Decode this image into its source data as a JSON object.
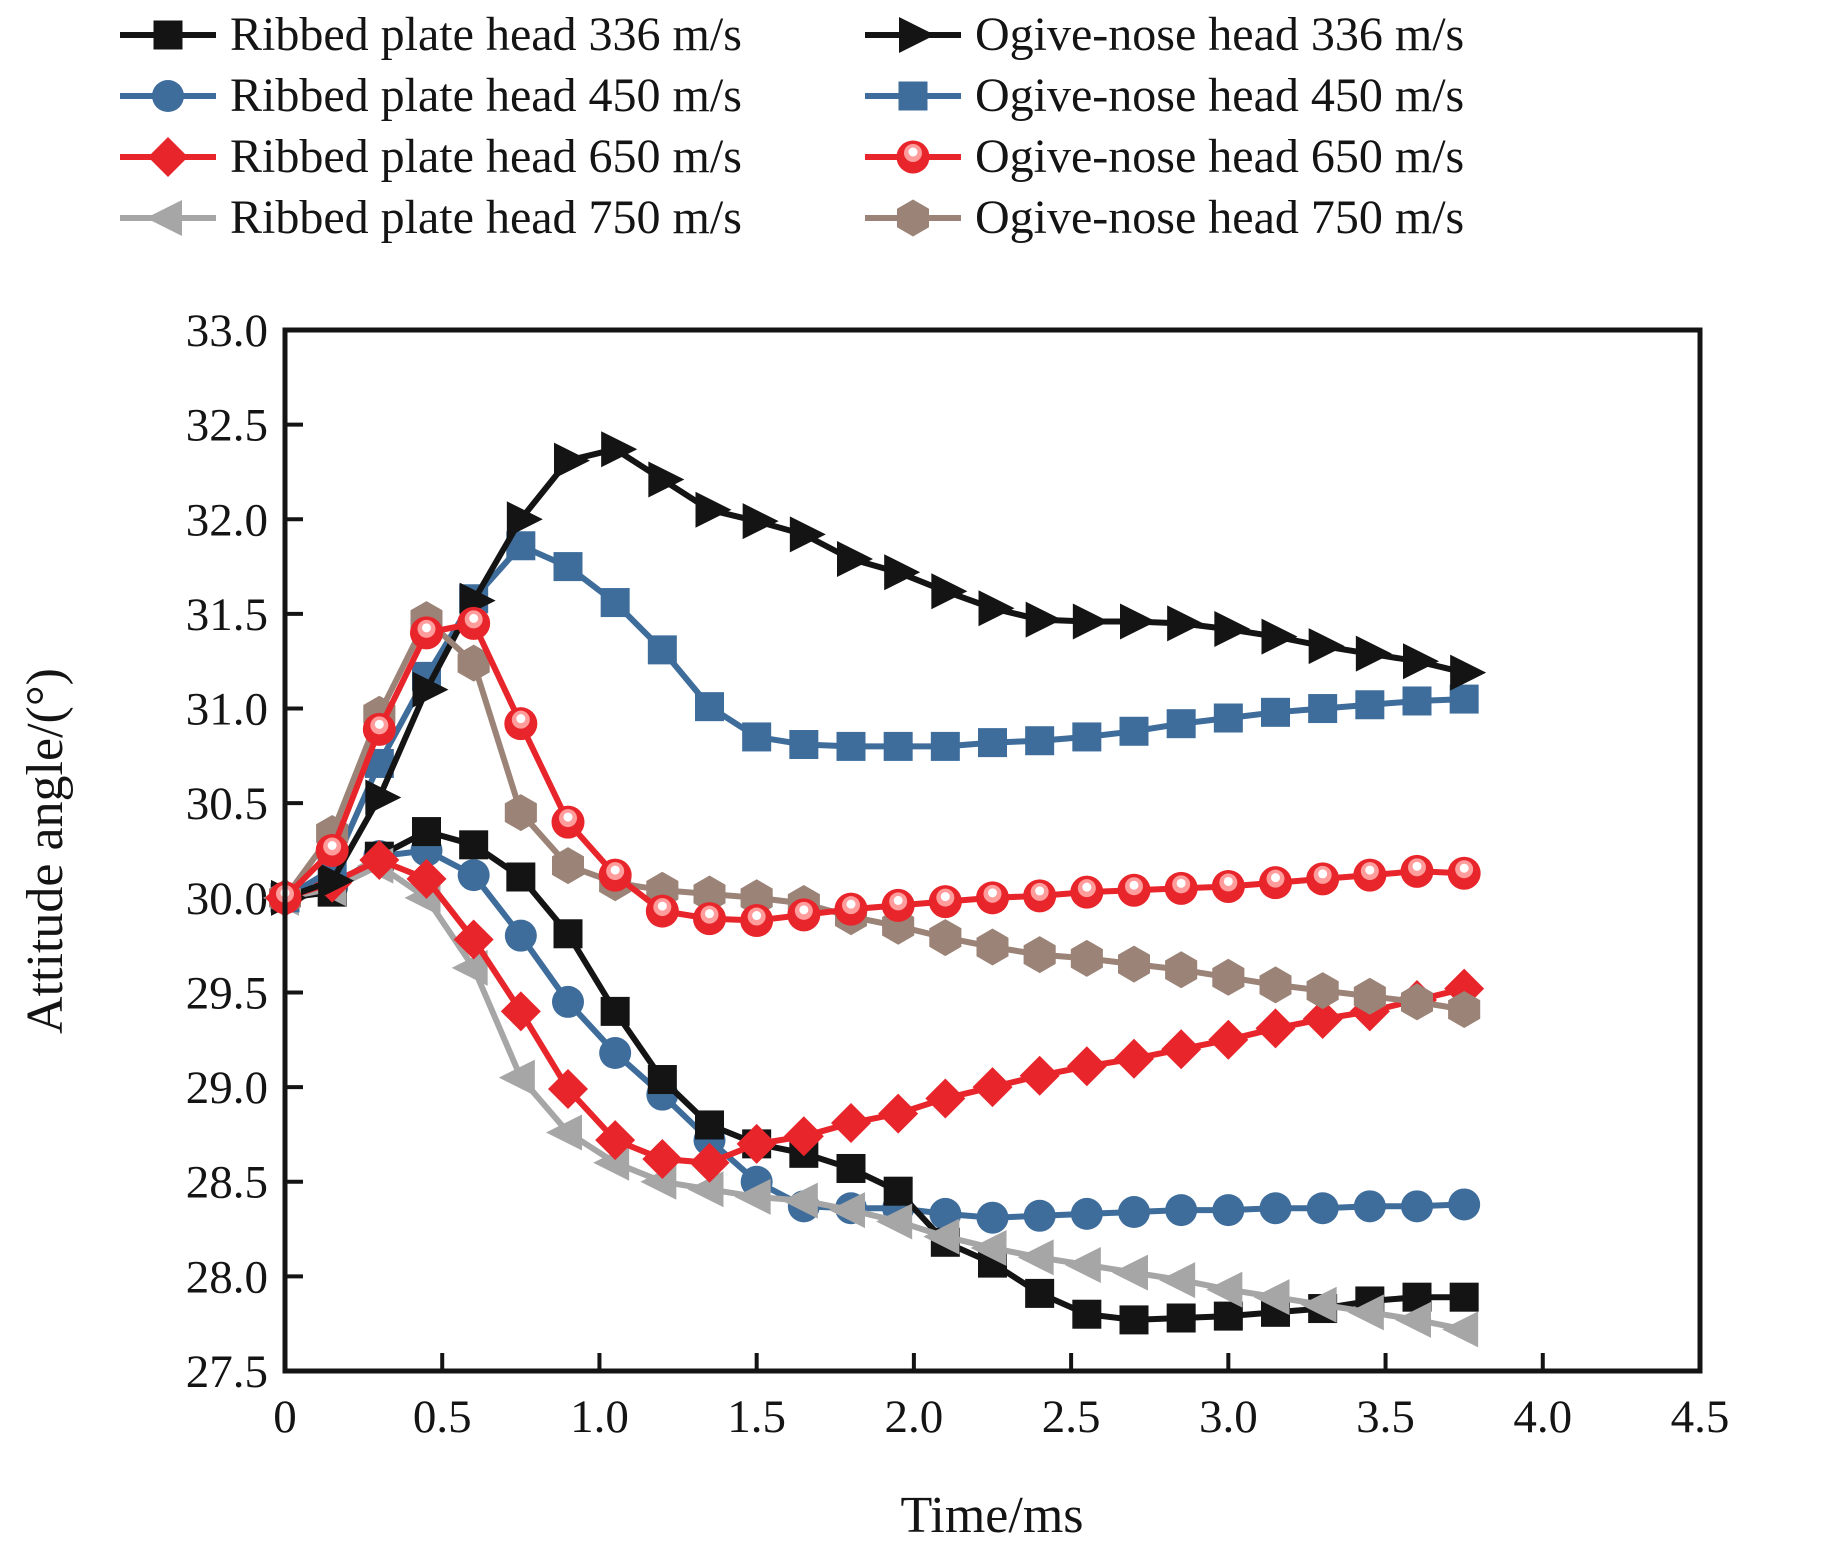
{
  "chart_data": {
    "type": "line",
    "xlabel": "Time/ms",
    "ylabel": "Attitude angle/(°)",
    "xlim": [
      0,
      4.5
    ],
    "ylim": [
      27.5,
      33.0
    ],
    "grid": false,
    "legend_position": "top",
    "legend_columns": 2,
    "axis_color": "#141414",
    "x_tick_labels": [
      "0",
      "0.5",
      "1.0",
      "1.5",
      "2.0",
      "2.5",
      "3.0",
      "3.5",
      "4.0",
      "4.5"
    ],
    "x_tick_values": [
      0,
      0.5,
      1.0,
      1.5,
      2.0,
      2.5,
      3.0,
      3.5,
      4.0,
      4.5
    ],
    "y_tick_labels": [
      "27.5",
      "28.0",
      "28.5",
      "29.0",
      "29.5",
      "30.0",
      "30.5",
      "31.0",
      "31.5",
      "32.0",
      "32.5",
      "33.0"
    ],
    "y_tick_values": [
      27.5,
      28.0,
      28.5,
      29.0,
      29.5,
      30.0,
      30.5,
      31.0,
      31.5,
      32.0,
      32.5,
      33.0
    ],
    "x": [
      0,
      0.15,
      0.3,
      0.45,
      0.6,
      0.75,
      0.9,
      1.05,
      1.2,
      1.35,
      1.5,
      1.65,
      1.8,
      1.95,
      2.1,
      2.25,
      2.4,
      2.55,
      2.7,
      2.85,
      3.0,
      3.15,
      3.3,
      3.45,
      3.6,
      3.75
    ],
    "series": [
      {
        "name": "Ribbed plate head 336 m/s",
        "marker": "square",
        "color": "#141414",
        "values": [
          30.0,
          30.03,
          30.22,
          30.35,
          30.28,
          30.11,
          29.81,
          29.4,
          29.04,
          28.8,
          28.7,
          28.65,
          28.57,
          28.45,
          28.18,
          28.07,
          27.91,
          27.8,
          27.77,
          27.78,
          27.79,
          27.81,
          27.83,
          27.87,
          27.89,
          27.89
        ]
      },
      {
        "name": "Ogive-nose head 336 m/s",
        "marker": "triangle-right",
        "color": "#141414",
        "values": [
          30.0,
          30.09,
          30.53,
          31.1,
          31.57,
          32.0,
          32.31,
          32.37,
          32.21,
          32.05,
          31.99,
          31.92,
          31.79,
          31.72,
          31.62,
          31.53,
          31.47,
          31.46,
          31.46,
          31.45,
          31.42,
          31.38,
          31.33,
          31.29,
          31.25,
          31.19
        ]
      },
      {
        "name": "Ribbed plate head 450 m/s",
        "marker": "circle",
        "color": "#3e6d9c",
        "values": [
          30.0,
          30.06,
          30.22,
          30.25,
          30.12,
          29.8,
          29.45,
          29.18,
          28.96,
          28.72,
          28.5,
          28.37,
          28.36,
          28.36,
          28.33,
          28.31,
          28.32,
          28.33,
          28.34,
          28.35,
          28.35,
          28.36,
          28.36,
          28.37,
          28.37,
          28.38
        ]
      },
      {
        "name": "Ogive-nose head 450 m/s",
        "marker": "square",
        "color": "#3e6d9c",
        "values": [
          30.0,
          30.15,
          30.71,
          31.17,
          31.58,
          31.86,
          31.75,
          31.56,
          31.31,
          31.01,
          30.85,
          30.81,
          30.8,
          30.8,
          30.8,
          30.82,
          30.83,
          30.85,
          30.88,
          30.92,
          30.95,
          30.98,
          31.0,
          31.02,
          31.04,
          31.05
        ]
      },
      {
        "name": "Ribbed plate head 650 m/s",
        "marker": "diamond",
        "color": "#e8252a",
        "values": [
          30.0,
          30.08,
          30.2,
          30.1,
          29.78,
          29.4,
          28.99,
          28.72,
          28.62,
          28.6,
          28.7,
          28.74,
          28.81,
          28.86,
          28.94,
          29.0,
          29.06,
          29.11,
          29.15,
          29.2,
          29.25,
          29.31,
          29.36,
          29.4,
          29.46,
          29.52
        ]
      },
      {
        "name": "Ogive-nose head 650 m/s",
        "marker": "ball",
        "color": "#e8252a",
        "values": [
          30.0,
          30.25,
          30.89,
          31.4,
          31.45,
          30.92,
          30.4,
          30.12,
          29.93,
          29.89,
          29.88,
          29.91,
          29.94,
          29.96,
          29.98,
          30.0,
          30.01,
          30.03,
          30.04,
          30.05,
          30.06,
          30.08,
          30.1,
          30.12,
          30.14,
          30.13
        ]
      },
      {
        "name": "Ribbed plate head 750 m/s",
        "marker": "triangle-left",
        "color": "#a6a6a6",
        "values": [
          30.0,
          30.05,
          30.17,
          30.0,
          29.63,
          29.05,
          28.76,
          28.6,
          28.5,
          28.46,
          28.42,
          28.4,
          28.35,
          28.29,
          28.21,
          28.15,
          28.1,
          28.06,
          28.02,
          27.98,
          27.93,
          27.89,
          27.85,
          27.81,
          27.77,
          27.72
        ]
      },
      {
        "name": "Ogive-nose head 750 m/s",
        "marker": "hexagon",
        "color": "#9c8377",
        "values": [
          30.0,
          30.34,
          30.97,
          31.47,
          31.24,
          30.45,
          30.17,
          30.08,
          30.04,
          30.02,
          30.0,
          29.97,
          29.9,
          29.85,
          29.79,
          29.74,
          29.7,
          29.68,
          29.65,
          29.62,
          29.58,
          29.54,
          29.51,
          29.48,
          29.45,
          29.41
        ]
      }
    ]
  }
}
